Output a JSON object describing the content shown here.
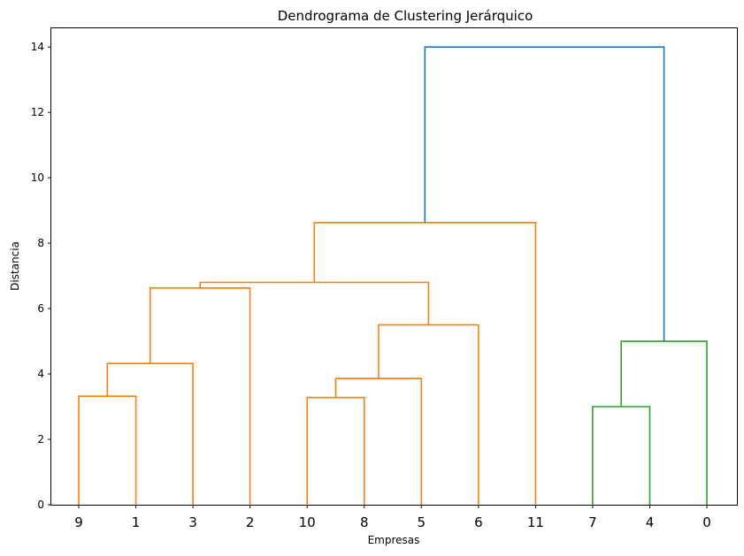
{
  "chart_data": {
    "type": "dendrogram",
    "title": "Dendrograma de Clustering Jerárquico",
    "xlabel": "Empresas",
    "ylabel": "Distancia",
    "ylim": [
      0,
      14.6
    ],
    "yticks": [
      0,
      2,
      4,
      6,
      8,
      10,
      12,
      14
    ],
    "grid": false,
    "leaves": [
      "9",
      "1",
      "3",
      "2",
      "10",
      "8",
      "5",
      "6",
      "11",
      "7",
      "4",
      "0"
    ],
    "colors": {
      "cluster_a": "#ff7f0e",
      "cluster_b": "#2ca02c",
      "above_threshold": "#1f77b4"
    },
    "merges": [
      {
        "left_pos": 0,
        "right_pos": 1,
        "left_h": 0,
        "right_h": 0,
        "height": 3.32,
        "color": "#ff7f0e"
      },
      {
        "left_pos": 0.5,
        "right_pos": 2,
        "left_h": 3.32,
        "right_h": 0,
        "height": 4.32,
        "color": "#ff7f0e"
      },
      {
        "left_pos": 1.25,
        "right_pos": 3,
        "left_h": 4.32,
        "right_h": 0,
        "height": 6.63,
        "color": "#ff7f0e"
      },
      {
        "left_pos": 4,
        "right_pos": 5,
        "left_h": 0,
        "right_h": 0,
        "height": 3.28,
        "color": "#ff7f0e"
      },
      {
        "left_pos": 4.5,
        "right_pos": 6,
        "left_h": 3.28,
        "right_h": 0,
        "height": 3.86,
        "color": "#ff7f0e"
      },
      {
        "left_pos": 5.25,
        "right_pos": 7,
        "left_h": 3.86,
        "right_h": 0,
        "height": 5.5,
        "color": "#ff7f0e"
      },
      {
        "left_pos": 2.125,
        "right_pos": 6.125,
        "left_h": 6.63,
        "right_h": 5.5,
        "height": 6.8,
        "color": "#ff7f0e"
      },
      {
        "left_pos": 4.125,
        "right_pos": 8,
        "left_h": 6.8,
        "right_h": 0,
        "height": 8.63,
        "color": "#ff7f0e"
      },
      {
        "left_pos": 9,
        "right_pos": 10,
        "left_h": 0,
        "right_h": 0,
        "height": 3.0,
        "color": "#2ca02c"
      },
      {
        "left_pos": 9.5,
        "right_pos": 11,
        "left_h": 3.0,
        "right_h": 0,
        "height": 5.0,
        "color": "#2ca02c"
      },
      {
        "left_pos": 6.0625,
        "right_pos": 10.25,
        "left_h": 8.63,
        "right_h": 5.0,
        "height": 14.0,
        "color": "#1f77b4"
      }
    ]
  }
}
